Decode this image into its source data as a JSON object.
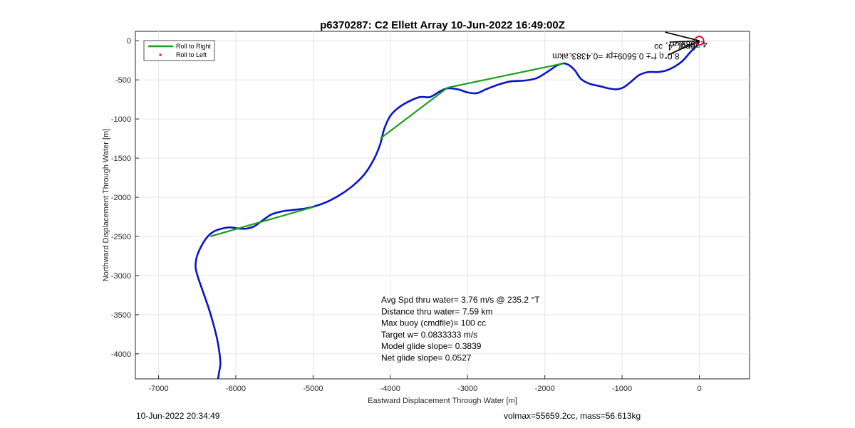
{
  "footer": {
    "timestamp": "10-Jun-2022 20:34:49",
    "vol_mass": "volmax=55659.2cc, mass=56.613kg"
  },
  "colors": {
    "track": "#0a14c8",
    "roll_right": "#1aa01a",
    "roll_left": "#ff0000",
    "target": "#d01020",
    "grid": "#e6e6e6"
  },
  "chart_data": {
    "type": "line",
    "title": "p6370287: C2 Ellett Array 10-Jun-2022 16:49:00Z",
    "xlabel": "Eastward Displacement Through Water [m]",
    "ylabel": "Northward Displacement Through Water [m]",
    "xlim": [
      -7300,
      650
    ],
    "ylim": [
      -4320,
      120
    ],
    "xticks": [
      -7000,
      -6000,
      -5000,
      -4000,
      -3000,
      -2000,
      -1000,
      0
    ],
    "yticks": [
      0,
      -500,
      -1000,
      -1500,
      -2000,
      -2500,
      -3000,
      -3500,
      -4000
    ],
    "grid": true,
    "legend": {
      "placement": "top-left",
      "entries": [
        "Roll to Right",
        "Roll to Left"
      ]
    },
    "series": [
      {
        "name": "track",
        "points": [
          [
            -6230,
            -4320
          ],
          [
            -6215,
            -4230
          ],
          [
            -6200,
            -4130
          ],
          [
            -6210,
            -4000
          ],
          [
            -6240,
            -3820
          ],
          [
            -6290,
            -3620
          ],
          [
            -6350,
            -3420
          ],
          [
            -6420,
            -3220
          ],
          [
            -6490,
            -3020
          ],
          [
            -6520,
            -2900
          ],
          [
            -6510,
            -2780
          ],
          [
            -6460,
            -2650
          ],
          [
            -6380,
            -2520
          ],
          [
            -6290,
            -2440
          ],
          [
            -6180,
            -2400
          ],
          [
            -6070,
            -2385
          ],
          [
            -5960,
            -2400
          ],
          [
            -5860,
            -2400
          ],
          [
            -5760,
            -2370
          ],
          [
            -5660,
            -2300
          ],
          [
            -5540,
            -2220
          ],
          [
            -5400,
            -2180
          ],
          [
            -5240,
            -2160
          ],
          [
            -5080,
            -2140
          ],
          [
            -4930,
            -2100
          ],
          [
            -4780,
            -2040
          ],
          [
            -4620,
            -1950
          ],
          [
            -4470,
            -1840
          ],
          [
            -4330,
            -1700
          ],
          [
            -4210,
            -1510
          ],
          [
            -4130,
            -1320
          ],
          [
            -4080,
            -1130
          ],
          [
            -4000,
            -960
          ],
          [
            -3900,
            -860
          ],
          [
            -3770,
            -780
          ],
          [
            -3620,
            -720
          ],
          [
            -3490,
            -720
          ],
          [
            -3380,
            -660
          ],
          [
            -3270,
            -610
          ],
          [
            -3130,
            -620
          ],
          [
            -3000,
            -660
          ],
          [
            -2880,
            -670
          ],
          [
            -2760,
            -620
          ],
          [
            -2600,
            -560
          ],
          [
            -2440,
            -520
          ],
          [
            -2270,
            -510
          ],
          [
            -2110,
            -480
          ],
          [
            -1970,
            -400
          ],
          [
            -1850,
            -320
          ],
          [
            -1760,
            -290
          ],
          [
            -1690,
            -310
          ],
          [
            -1610,
            -380
          ],
          [
            -1530,
            -490
          ],
          [
            -1420,
            -550
          ],
          [
            -1290,
            -580
          ],
          [
            -1170,
            -610
          ],
          [
            -1060,
            -620
          ],
          [
            -970,
            -590
          ],
          [
            -880,
            -520
          ],
          [
            -780,
            -440
          ],
          [
            -660,
            -400
          ],
          [
            -540,
            -400
          ],
          [
            -430,
            -380
          ],
          [
            -320,
            -330
          ],
          [
            -220,
            -260
          ],
          [
            -120,
            -150
          ],
          [
            -40,
            -70
          ],
          [
            0,
            0
          ]
        ]
      },
      {
        "name": "Roll to Right",
        "segments": [
          [
            [
              -6330,
              -2500
            ],
            [
              -4980,
              -2120
            ]
          ],
          [
            [
              -4130,
              -1250
            ],
            [
              -3260,
              -600
            ]
          ],
          [
            [
              -3260,
              -600
            ],
            [
              -1760,
              -290
            ]
          ]
        ]
      }
    ],
    "target_marker": [
      0,
      0
    ],
    "annotations": [
      {
        "text": "4.7639km",
        "rotation": 180,
        "x": -140,
        "y": -8
      },
      {
        "text": "bpgr¸.4¸ ɔɔ ",
        "rotation": 180,
        "x": -320,
        "y": -45
      },
      {
        "text": "8.0°ฤ f°± 0.5609±pr =0.4383˪ลkm",
        "rotation": 180,
        "x": -1080,
        "y": -160
      }
    ],
    "stats": [
      "Avg Spd thru water=  3.76 m/s @ 235.2 °T",
      "Distance thru water=  7.59 km",
      "Max buoy (cmdfile)= 100 cc",
      "Target w= 0.0833333 m/s",
      "Model glide slope= 0.3839",
      "Net glide slope= 0.0527"
    ]
  }
}
